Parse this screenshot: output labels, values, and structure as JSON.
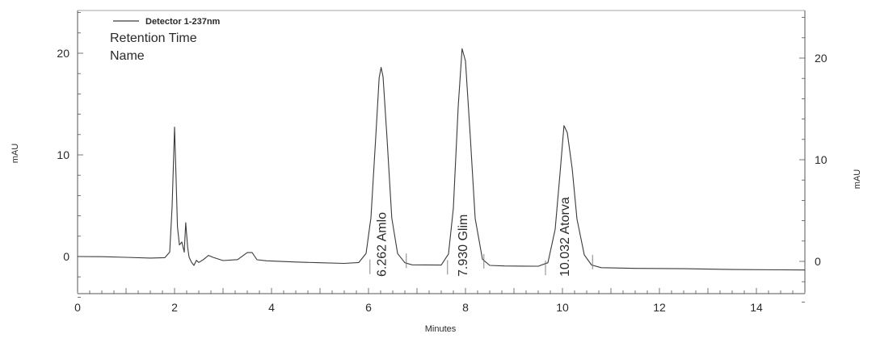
{
  "chart_data": {
    "type": "line",
    "title": "",
    "xlabel": "Minutes",
    "ylabel": "mAU",
    "ylabel_right": "mAU",
    "xlim": [
      0,
      15
    ],
    "ylim": [
      -4,
      24
    ],
    "ylim_right": [
      -4,
      24
    ],
    "x_ticks": [
      0,
      2,
      4,
      6,
      8,
      10,
      12,
      14
    ],
    "y_ticks_left": [
      0,
      10,
      20
    ],
    "y_ticks_right": [
      0,
      10,
      20
    ],
    "grid": false,
    "line_color": "#3a3a3a",
    "legend": {
      "placement": "top-left",
      "entries": [
        "Detector 1-237nm"
      ],
      "extra_lines": [
        "Retention Time",
        "Name"
      ]
    },
    "series": [
      {
        "name": "Detector 1-237nm",
        "x": [
          0,
          0.5,
          1.0,
          1.5,
          1.8,
          1.9,
          1.95,
          2.0,
          2.03,
          2.06,
          2.1,
          2.15,
          2.2,
          2.23,
          2.27,
          2.3,
          2.35,
          2.4,
          2.45,
          2.5,
          2.6,
          2.7,
          2.8,
          3.0,
          3.3,
          3.5,
          3.6,
          3.7,
          3.9,
          4.5,
          5.0,
          5.5,
          5.8,
          5.95,
          6.05,
          6.15,
          6.22,
          6.26,
          6.3,
          6.38,
          6.48,
          6.6,
          6.75,
          6.9,
          7.2,
          7.5,
          7.65,
          7.75,
          7.85,
          7.93,
          8.0,
          8.1,
          8.2,
          8.35,
          8.5,
          8.8,
          9.2,
          9.5,
          9.7,
          9.85,
          9.95,
          10.032,
          10.1,
          10.2,
          10.3,
          10.45,
          10.6,
          10.8,
          11.5,
          12.5,
          13.5,
          14.5,
          15.0
        ],
        "values": [
          0,
          0,
          -0.05,
          -0.1,
          -0.05,
          0.5,
          5.0,
          12.8,
          8.0,
          3.0,
          1.2,
          1.5,
          0.5,
          3.4,
          1.0,
          0.0,
          -0.5,
          -0.8,
          -0.3,
          -0.5,
          -0.2,
          0.2,
          0.0,
          -0.3,
          -0.2,
          0.5,
          0.5,
          -0.2,
          -0.3,
          -0.4,
          -0.45,
          -0.5,
          -0.4,
          0.5,
          4.0,
          12.0,
          17.8,
          18.8,
          17.9,
          12.0,
          4.0,
          0.5,
          -0.4,
          -0.6,
          -0.6,
          -0.6,
          0.5,
          5.0,
          15.0,
          20.7,
          19.5,
          12.0,
          4.0,
          0.0,
          -0.6,
          -0.65,
          -0.65,
          -0.65,
          -0.3,
          3.0,
          8.5,
          13.2,
          12.5,
          9.0,
          4.0,
          0.5,
          -0.5,
          -0.75,
          -0.8,
          -0.8,
          -0.85,
          -0.85,
          -0.85
        ]
      }
    ],
    "peaks": [
      {
        "name": "Amlo",
        "retention_time": "6.262",
        "rt": 6.262,
        "label": "6.262  Amlo",
        "baseline_start": 6.03,
        "baseline_end": 6.78
      },
      {
        "name": "Glim",
        "retention_time": "7.930",
        "rt": 7.93,
        "label": "7.930  Glim",
        "baseline_start": 7.63,
        "baseline_end": 8.38
      },
      {
        "name": "Atorva",
        "retention_time": "10.032",
        "rt": 10.032,
        "label": "10.032  Atorva",
        "baseline_start": 9.65,
        "baseline_end": 10.62
      }
    ]
  }
}
